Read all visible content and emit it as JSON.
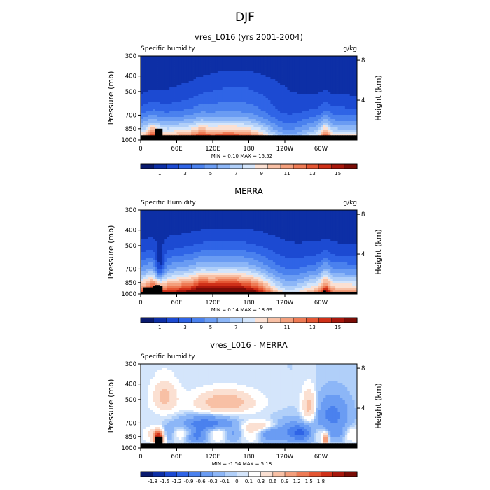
{
  "figure": {
    "title": "DJF"
  },
  "colors": {
    "seq": [
      "#0a1a6e",
      "#0d2fa6",
      "#1c4ad2",
      "#2f64e6",
      "#4a81ee",
      "#6a9cf3",
      "#8cb6f7",
      "#b0cff9",
      "#d4e5fb",
      "#fbe0d2",
      "#f8c0a5",
      "#f49f7c",
      "#ee7b55",
      "#e45633",
      "#cf3018",
      "#a8170c",
      "#7a0c06"
    ],
    "div": [
      "#0a1a6e",
      "#0d2fa6",
      "#1c4ad2",
      "#2f64e6",
      "#4a81ee",
      "#6a9cf3",
      "#8cb6f7",
      "#b0cff9",
      "#d4e5fb",
      "#ffffff",
      "#fbe0d2",
      "#f8c0a5",
      "#f49f7c",
      "#ee7b55",
      "#e45633",
      "#cf3018",
      "#a8170c",
      "#7a0c06"
    ],
    "mask": "#000000"
  },
  "chart_data": [
    {
      "type": "heatmap",
      "id": "model",
      "title": "vres_L016 (yrs 2001-2004)",
      "left_label": "Specific humidity",
      "units": "g/kg",
      "ylabel": "Pressure (mb)",
      "y2label": "Height (km)",
      "x_ticks": [
        "0",
        "60E",
        "120E",
        "180",
        "120W",
        "60W"
      ],
      "y_ticks": [
        "300",
        "400",
        "500",
        "700",
        "850",
        "1000"
      ],
      "y2_ticks": [
        "8",
        "4"
      ],
      "stats": "MIN =   0.10  MAX =  15.52",
      "xlim": [
        0,
        360
      ],
      "ylim_mb": [
        300,
        1000
      ],
      "levels": [
        0,
        1,
        2,
        3,
        4,
        5,
        6,
        7,
        8,
        9,
        10,
        11,
        12,
        13,
        14,
        15,
        16
      ],
      "colorbar_labels": [
        "1",
        "3",
        "5",
        "7",
        "9",
        "11",
        "13",
        "15"
      ],
      "mode": "seq",
      "min": 0.1,
      "max": 15.52
    },
    {
      "type": "heatmap",
      "id": "obs",
      "title": "MERRA",
      "left_label": "Specific Humidity",
      "units": "g/kg",
      "ylabel": "Pressure (mb)",
      "y2label": "Height (km)",
      "x_ticks": [
        "0",
        "60E",
        "120E",
        "180",
        "120W",
        "60W"
      ],
      "y_ticks": [
        "300",
        "400",
        "500",
        "700",
        "850",
        "1000"
      ],
      "y2_ticks": [
        "8",
        "4"
      ],
      "stats": "MIN =   0.14  MAX =  18.69",
      "xlim": [
        0,
        360
      ],
      "ylim_mb": [
        300,
        1000
      ],
      "levels": [
        0,
        1,
        2,
        3,
        4,
        5,
        6,
        7,
        8,
        9,
        10,
        11,
        12,
        13,
        14,
        15,
        16
      ],
      "colorbar_labels": [
        "1",
        "3",
        "5",
        "7",
        "9",
        "11",
        "13",
        "15"
      ],
      "mode": "seq",
      "min": 0.14,
      "max": 18.69
    },
    {
      "type": "heatmap",
      "id": "diff",
      "title": "vres_L016 - MERRA",
      "left_label": "Specific humidity",
      "units": "",
      "ylabel": "Pressure (mb)",
      "y2label": "Height (km)",
      "x_ticks": [
        "0",
        "60E",
        "120E",
        "180",
        "120W",
        "60W"
      ],
      "y_ticks": [
        "300",
        "400",
        "500",
        "700",
        "850",
        "1000"
      ],
      "y2_ticks": [
        "8",
        "4"
      ],
      "stats": "MIN =  -1.54  MAX =   5.18",
      "xlim": [
        0,
        360
      ],
      "ylim_mb": [
        300,
        1000
      ],
      "levels": [
        -1.8,
        -1.5,
        -1.2,
        -0.9,
        -0.6,
        -0.3,
        -0.1,
        0,
        0.1,
        0.3,
        0.6,
        0.9,
        1.2,
        1.5,
        1.8
      ],
      "colorbar_labels": [
        "-1.8",
        "-1.5",
        "-1.2",
        "-0.9",
        "-0.6",
        "-0.3",
        "-0.1",
        "0",
        "0.1",
        "0.3",
        "0.6",
        "0.9",
        "1.2",
        "1.5",
        "1.8"
      ],
      "mode": "div",
      "min": -1.54,
      "max": 5.18
    }
  ]
}
